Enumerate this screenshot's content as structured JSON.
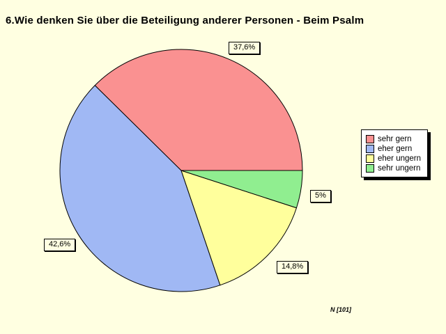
{
  "chart_data": {
    "type": "pie",
    "title": "6.Wie denken Sie über die Beteiligung anderer Personen - Beim Psalm",
    "segments": [
      {
        "label": "sehr gern",
        "value": 37.6,
        "display": "37,6%",
        "color": "#FA9191"
      },
      {
        "label": "eher gern",
        "value": 42.6,
        "display": "42,6%",
        "color": "#A0B8F4"
      },
      {
        "label": "eher ungern",
        "value": 14.8,
        "display": "14,8%",
        "color": "#FFFF9C"
      },
      {
        "label": "sehr ungern",
        "value": 5,
        "display": "5%",
        "color": "#90EE90"
      }
    ],
    "legend_position": "right",
    "start_angle_deg": 0,
    "direction": "counterclockwise",
    "outline_color": "#000000",
    "background_color": "#FFFFE1",
    "annotation": "N [101]"
  }
}
